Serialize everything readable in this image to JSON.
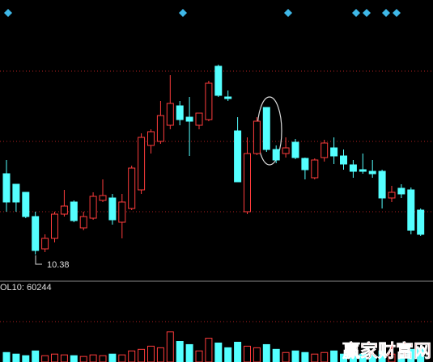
{
  "chart_data": {
    "type": "candlestick",
    "ylim": [
      10.13,
      13.13
    ],
    "vlim": [
      0,
      400000
    ],
    "up_color": "#ff3c3c",
    "down_color": "#54ffff",
    "open": [
      11.38,
      11.25,
      11.15,
      10.85,
      10.45,
      10.58,
      10.88,
      11.03,
      10.71,
      10.83,
      11.05,
      11.08,
      10.78,
      10.95,
      11.18,
      11.73,
      11.78,
      11.98,
      12.22,
      12.08,
      11.98,
      12.05,
      12.71,
      12.33,
      11.91,
      10.91,
      11.63,
      12.2,
      11.68,
      11.63,
      11.77,
      11.57,
      11.33,
      11.58,
      11.7,
      11.6,
      11.49,
      11.43,
      11.41,
      11.41,
      11.08,
      11.2,
      11.18,
      10.93
    ],
    "high": [
      11.55,
      11.25,
      11.15,
      10.91,
      10.63,
      10.91,
      11.18,
      11.05,
      10.91,
      11.15,
      11.31,
      11.13,
      11.13,
      11.48,
      11.88,
      11.93,
      12.28,
      12.6,
      12.28,
      12.33,
      12.13,
      12.53,
      12.73,
      12.41,
      12.08,
      11.83,
      12.08,
      12.2,
      11.73,
      11.83,
      11.81,
      11.58,
      11.57,
      11.8,
      11.83,
      11.68,
      11.55,
      11.63,
      11.55,
      11.43,
      11.23,
      11.25,
      11.21,
      10.95
    ],
    "low": [
      10.91,
      10.91,
      10.83,
      10.38,
      10.41,
      10.53,
      10.85,
      10.78,
      10.68,
      10.81,
      11.03,
      10.75,
      10.58,
      10.93,
      11.13,
      11.63,
      11.75,
      11.93,
      11.98,
      11.6,
      11.93,
      12.03,
      12.33,
      12.28,
      11.28,
      10.88,
      11.61,
      11.65,
      11.51,
      11.58,
      11.56,
      11.31,
      11.31,
      11.53,
      11.5,
      11.43,
      11.33,
      11.38,
      11.33,
      10.95,
      11.03,
      11.08,
      10.63,
      10.61
    ],
    "close": [
      11.03,
      11.03,
      10.85,
      10.43,
      10.58,
      10.88,
      10.98,
      10.8,
      10.85,
      11.1,
      11.11,
      10.81,
      11.03,
      11.45,
      11.83,
      11.9,
      12.1,
      12.25,
      12.05,
      12.03,
      12.13,
      12.5,
      12.35,
      12.31,
      11.28,
      11.63,
      12.03,
      11.68,
      11.55,
      11.7,
      11.58,
      11.43,
      11.55,
      11.76,
      11.6,
      11.5,
      11.41,
      11.41,
      11.38,
      11.08,
      11.15,
      11.13,
      10.68,
      10.63
    ],
    "volume": [
      48000,
      40000,
      32000,
      56000,
      32000,
      40000,
      36000,
      32000,
      28000,
      36000,
      32000,
      40000,
      36000,
      56000,
      64000,
      80000,
      72000,
      152000,
      104000,
      88000,
      56000,
      120000,
      96000,
      72000,
      100000,
      80000,
      72000,
      88000,
      64000,
      48000,
      56000,
      48000,
      40000,
      48000,
      56000,
      40000,
      48000,
      40000,
      36000,
      56000,
      40000,
      36000,
      64000,
      72000
    ],
    "min_label": "10.38",
    "volume_label": "OL10: 60244",
    "watermark": "赢家财富网"
  }
}
